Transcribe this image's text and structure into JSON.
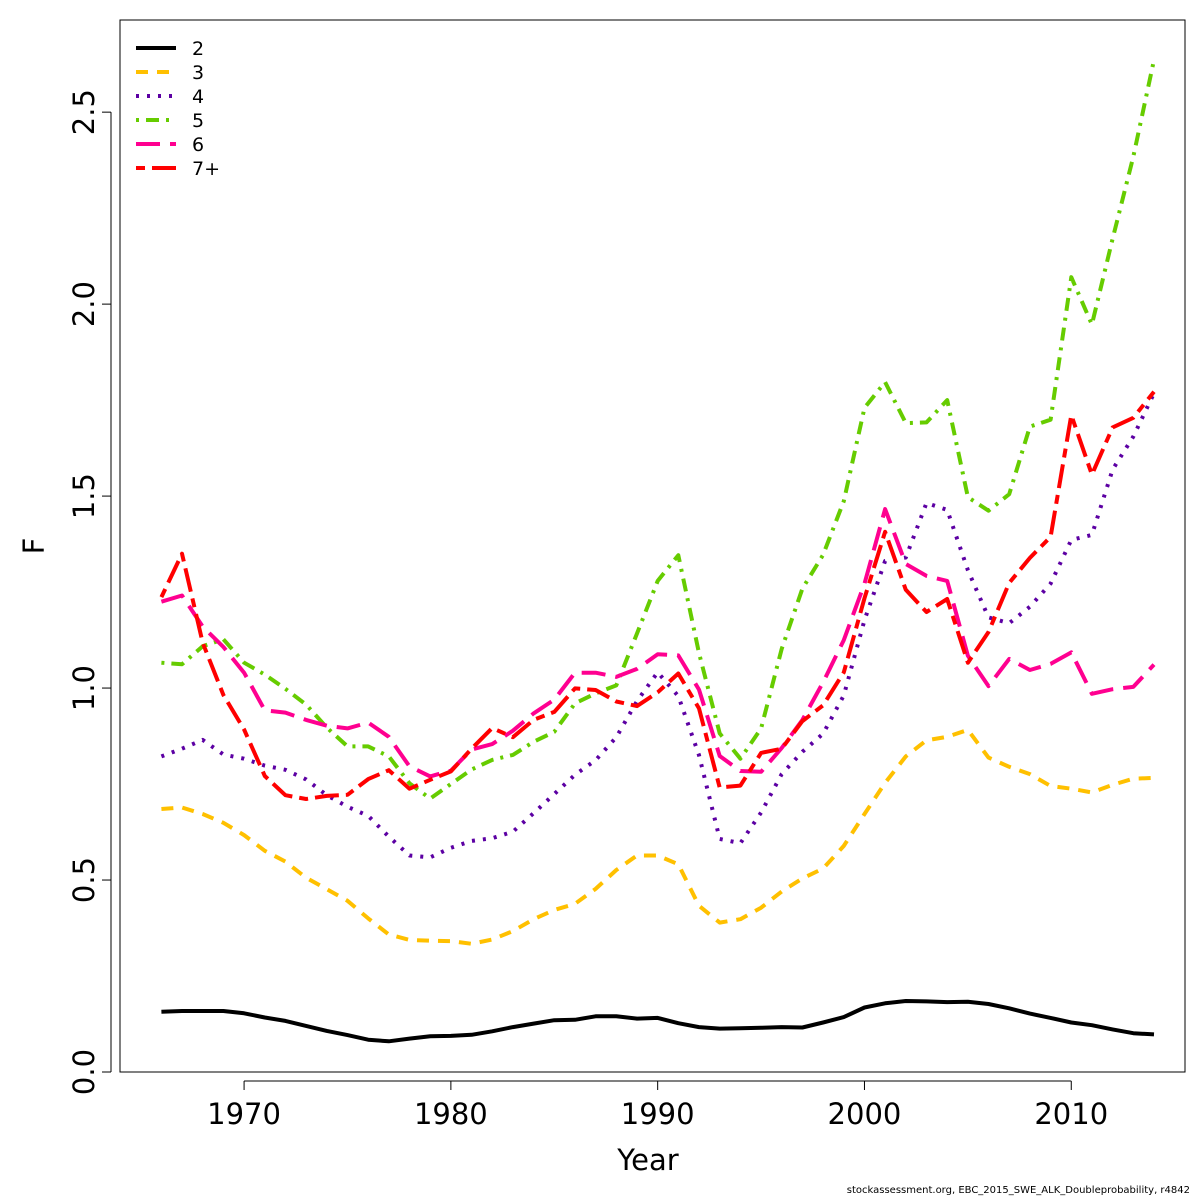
{
  "chart_data": {
    "type": "line",
    "xlabel": "Year",
    "ylabel": "F",
    "xlim": [
      1964,
      2015.5
    ],
    "ylim": [
      0,
      2.74
    ],
    "x_ticks": [
      1970,
      1980,
      1990,
      2000,
      2010
    ],
    "y_ticks": [
      0.0,
      0.5,
      1.0,
      1.5,
      2.0,
      2.5
    ],
    "y_tick_labels": [
      "0.0",
      "0.5",
      "1.0",
      "1.5",
      "2.0",
      "2.5"
    ],
    "grid": false,
    "legend_position": "top-left",
    "x": [
      1966,
      1967,
      1968,
      1969,
      1970,
      1971,
      1972,
      1973,
      1974,
      1975,
      1976,
      1977,
      1978,
      1979,
      1980,
      1981,
      1982,
      1983,
      1984,
      1985,
      1986,
      1987,
      1988,
      1989,
      1990,
      1991,
      1992,
      1993,
      1994,
      1995,
      1996,
      1997,
      1998,
      1999,
      2000,
      2001,
      2002,
      2003,
      2004,
      2005,
      2006,
      2007,
      2008,
      2009,
      2010,
      2011,
      2012,
      2013,
      2014
    ],
    "series": [
      {
        "name": "2",
        "color": "#000000",
        "dash": "solid",
        "values": [
          0.157,
          0.159,
          0.159,
          0.159,
          0.153,
          0.142,
          0.133,
          0.12,
          0.107,
          0.096,
          0.084,
          0.08,
          0.087,
          0.093,
          0.094,
          0.097,
          0.106,
          0.117,
          0.126,
          0.135,
          0.136,
          0.145,
          0.145,
          0.139,
          0.141,
          0.127,
          0.117,
          0.113,
          0.114,
          0.115,
          0.117,
          0.116,
          0.129,
          0.143,
          0.168,
          0.179,
          0.185,
          0.184,
          0.182,
          0.183,
          0.177,
          0.166,
          0.152,
          0.141,
          0.129,
          0.122,
          0.111,
          0.101,
          0.098
        ]
      },
      {
        "name": "3",
        "color": "#FFC000",
        "dash": "dashed",
        "values": [
          0.685,
          0.689,
          0.672,
          0.649,
          0.617,
          0.576,
          0.548,
          0.506,
          0.476,
          0.446,
          0.4,
          0.358,
          0.344,
          0.342,
          0.341,
          0.334,
          0.345,
          0.367,
          0.398,
          0.422,
          0.438,
          0.477,
          0.526,
          0.564,
          0.564,
          0.541,
          0.433,
          0.389,
          0.398,
          0.428,
          0.47,
          0.504,
          0.53,
          0.589,
          0.672,
          0.753,
          0.822,
          0.864,
          0.873,
          0.891,
          0.819,
          0.795,
          0.776,
          0.745,
          0.738,
          0.728,
          0.748,
          0.764,
          0.766
        ]
      },
      {
        "name": "4",
        "color": "#5C00A3",
        "dash": "dotted",
        "values": [
          0.822,
          0.842,
          0.865,
          0.827,
          0.816,
          0.798,
          0.787,
          0.762,
          0.721,
          0.691,
          0.667,
          0.613,
          0.564,
          0.559,
          0.584,
          0.602,
          0.609,
          0.626,
          0.674,
          0.724,
          0.774,
          0.812,
          0.872,
          0.966,
          1.041,
          0.979,
          0.825,
          0.607,
          0.596,
          0.676,
          0.776,
          0.834,
          0.881,
          0.981,
          1.177,
          1.331,
          1.34,
          1.482,
          1.464,
          1.307,
          1.184,
          1.169,
          1.212,
          1.272,
          1.386,
          1.399,
          1.569,
          1.655,
          1.768
        ]
      },
      {
        "name": "5",
        "color": "#66CC00",
        "dash": "dotdash",
        "values": [
          1.066,
          1.062,
          1.109,
          1.127,
          1.066,
          1.035,
          0.998,
          0.957,
          0.897,
          0.848,
          0.848,
          0.822,
          0.752,
          0.712,
          0.75,
          0.788,
          0.813,
          0.826,
          0.86,
          0.886,
          0.96,
          0.986,
          1.007,
          1.142,
          1.279,
          1.346,
          1.091,
          0.882,
          0.816,
          0.895,
          1.102,
          1.259,
          1.347,
          1.487,
          1.73,
          1.797,
          1.69,
          1.692,
          1.75,
          1.497,
          1.462,
          1.505,
          1.681,
          1.699,
          2.07,
          1.947,
          2.17,
          2.384,
          2.636
        ]
      },
      {
        "name": "6",
        "color": "#FF0090",
        "dash": "longdash",
        "values": [
          1.225,
          1.241,
          1.16,
          1.107,
          1.04,
          0.942,
          0.936,
          0.917,
          0.902,
          0.895,
          0.91,
          0.873,
          0.796,
          0.77,
          0.785,
          0.84,
          0.854,
          0.889,
          0.934,
          0.97,
          1.04,
          1.04,
          1.029,
          1.05,
          1.088,
          1.085,
          0.996,
          0.823,
          0.784,
          0.782,
          0.844,
          0.917,
          1.015,
          1.125,
          1.272,
          1.466,
          1.323,
          1.292,
          1.279,
          1.084,
          1.005,
          1.076,
          1.047,
          1.063,
          1.093,
          0.985,
          0.997,
          1.003,
          1.061
        ]
      },
      {
        "name": "7+",
        "color": "#FF0000",
        "dash": "twodash",
        "values": [
          1.237,
          1.35,
          1.118,
          0.982,
          0.892,
          0.771,
          0.721,
          0.711,
          0.719,
          0.722,
          0.763,
          0.786,
          0.738,
          0.761,
          0.783,
          0.842,
          0.896,
          0.872,
          0.917,
          0.938,
          0.999,
          0.995,
          0.965,
          0.953,
          0.989,
          1.038,
          0.947,
          0.741,
          0.746,
          0.831,
          0.842,
          0.914,
          0.955,
          1.041,
          1.234,
          1.407,
          1.256,
          1.198,
          1.232,
          1.066,
          1.146,
          1.274,
          1.339,
          1.394,
          1.711,
          1.556,
          1.679,
          1.704,
          1.772
        ]
      }
    ]
  },
  "footer": {
    "note": "stockassessment.org, EBC_2015_SWE_ALK_Doubleprobability, r4842"
  }
}
